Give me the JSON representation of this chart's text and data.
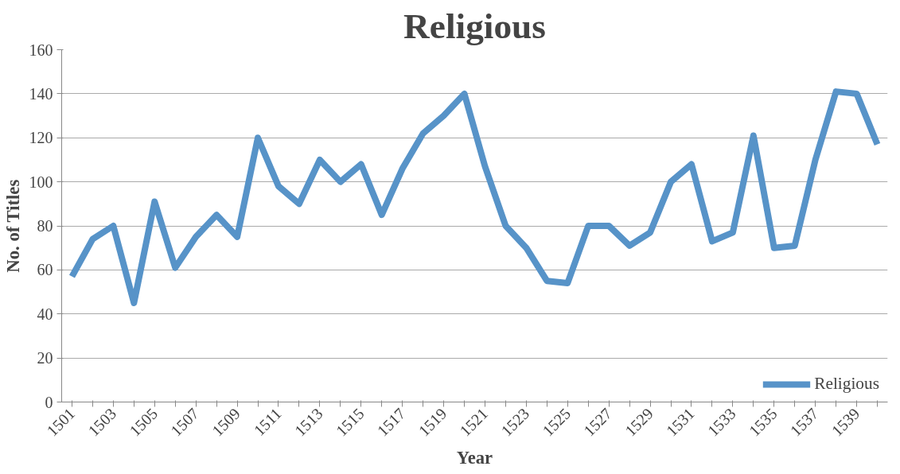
{
  "chart_data": {
    "type": "line",
    "title": "Religious",
    "xlabel": "Year",
    "ylabel": "No. of Titles",
    "categories": [
      "1501",
      null,
      "1503",
      null,
      "1505",
      null,
      "1507",
      null,
      "1509",
      null,
      "1511",
      null,
      "1513",
      null,
      "1515",
      null,
      "1517",
      null,
      "1519",
      null,
      "1521",
      null,
      "1523",
      null,
      "1525",
      null,
      "1527",
      null,
      "1529",
      null,
      "1531",
      null,
      "1533",
      null,
      "1535",
      null,
      "1537",
      null,
      "1539",
      null
    ],
    "series": [
      {
        "name": "Religious",
        "color": "#5793c8",
        "values": [
          57,
          74,
          80,
          45,
          91,
          61,
          75,
          85,
          75,
          120,
          98,
          90,
          110,
          100,
          108,
          85,
          106,
          122,
          130,
          140,
          107,
          80,
          70,
          55,
          54,
          80,
          80,
          71,
          77,
          100,
          108,
          73,
          77,
          121,
          70,
          71,
          110,
          141,
          140,
          117
        ]
      }
    ],
    "ylim": [
      0,
      160
    ],
    "yticks": [
      0,
      20,
      40,
      60,
      80,
      100,
      120,
      140,
      160
    ],
    "grid": "y",
    "legend": "bottom right",
    "marker": "none",
    "line_style": "solid"
  }
}
